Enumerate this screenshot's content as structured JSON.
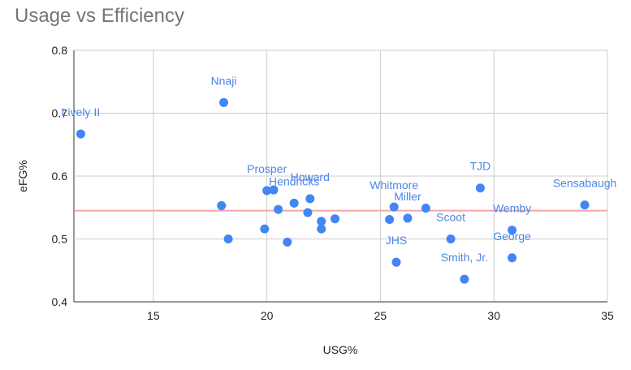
{
  "chart_data": {
    "type": "scatter",
    "title": "Usage vs Efficiency",
    "xlabel": "USG%",
    "ylabel": "eFG%",
    "xlim": [
      11.5,
      35
    ],
    "ylim": [
      0.4,
      0.8
    ],
    "xticks": [
      15,
      20,
      25,
      30,
      35
    ],
    "yticks": [
      0.4,
      0.5,
      0.6,
      0.7,
      0.8
    ],
    "grid": true,
    "point_color": "#4285f4",
    "label_color": "#4a86e8",
    "reference_line": {
      "y": 0.545,
      "color": "#f4a6a6"
    },
    "points": [
      {
        "x": 11.8,
        "y": 0.667,
        "label": "Lively II"
      },
      {
        "x": 18.1,
        "y": 0.717,
        "label": "Nnaji"
      },
      {
        "x": 18.0,
        "y": 0.553,
        "label": ""
      },
      {
        "x": 18.3,
        "y": 0.5,
        "label": ""
      },
      {
        "x": 19.9,
        "y": 0.516,
        "label": ""
      },
      {
        "x": 20.0,
        "y": 0.577,
        "label": "Prosper"
      },
      {
        "x": 20.3,
        "y": 0.578,
        "label": ""
      },
      {
        "x": 20.5,
        "y": 0.547,
        "label": ""
      },
      {
        "x": 20.9,
        "y": 0.495,
        "label": ""
      },
      {
        "x": 21.2,
        "y": 0.557,
        "label": "Hendricks"
      },
      {
        "x": 21.8,
        "y": 0.542,
        "label": ""
      },
      {
        "x": 21.9,
        "y": 0.564,
        "label": "Howard"
      },
      {
        "x": 22.4,
        "y": 0.528,
        "label": ""
      },
      {
        "x": 22.4,
        "y": 0.516,
        "label": ""
      },
      {
        "x": 23.0,
        "y": 0.532,
        "label": ""
      },
      {
        "x": 25.4,
        "y": 0.531,
        "label": ""
      },
      {
        "x": 25.6,
        "y": 0.551,
        "label": "Whitmore"
      },
      {
        "x": 25.7,
        "y": 0.463,
        "label": "JHS"
      },
      {
        "x": 26.2,
        "y": 0.533,
        "label": "Miller"
      },
      {
        "x": 27.0,
        "y": 0.549,
        "label": ""
      },
      {
        "x": 28.7,
        "y": 0.436,
        "label": "Smith, Jr."
      },
      {
        "x": 28.1,
        "y": 0.5,
        "label": "Scoot"
      },
      {
        "x": 29.4,
        "y": 0.581,
        "label": "TJD"
      },
      {
        "x": 30.8,
        "y": 0.514,
        "label": "Wemby"
      },
      {
        "x": 30.8,
        "y": 0.47,
        "label": "George"
      },
      {
        "x": 34.0,
        "y": 0.554,
        "label": "Sensabaugh"
      }
    ]
  }
}
